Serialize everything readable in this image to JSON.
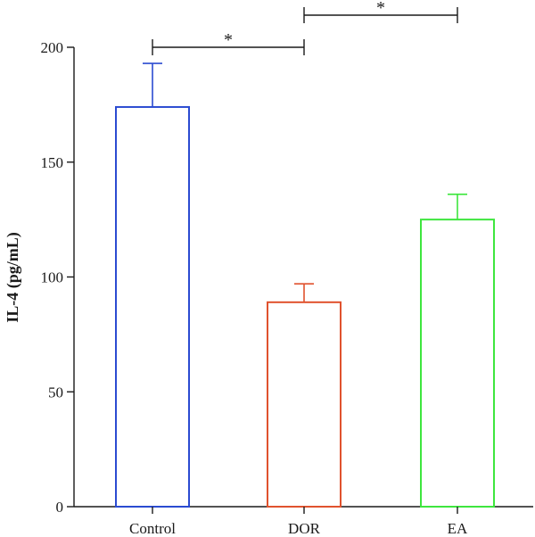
{
  "chart_data": {
    "type": "bar",
    "ylabel": "IL-4 (pg/mL)",
    "xlabel": "",
    "categories": [
      "Control",
      "DOR",
      "EA"
    ],
    "values": [
      174,
      89,
      125
    ],
    "error_upper": [
      193,
      97,
      136
    ],
    "colors": [
      "#2b4bd1",
      "#e0522e",
      "#3ee63e"
    ],
    "ylim": [
      0,
      200
    ],
    "yticks": [
      "0",
      "50",
      "100",
      "150",
      "200"
    ],
    "grid": false,
    "significance": [
      {
        "from": "Control",
        "to": "DOR",
        "label": "*"
      },
      {
        "from": "DOR",
        "to": "EA",
        "label": "*"
      }
    ]
  }
}
